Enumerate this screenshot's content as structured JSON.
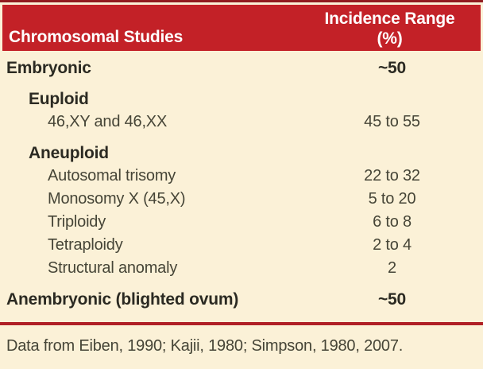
{
  "colors": {
    "header_red": "#c32127",
    "dark_red_top_rule": "#921b1f",
    "separator_rule_red": "#b02025",
    "background_cream": "#fbf1d7",
    "header_text": "#ffffff",
    "bold_text": "#2b2a22",
    "regular_text": "#464537"
  },
  "table": {
    "header": {
      "col1": "Chromosomal Studies",
      "col2_line1": "Incidence Range",
      "col2_line2": "(%)"
    },
    "rows": [
      {
        "label": "Embryonic",
        "value": "~50",
        "level": 0,
        "bold": true
      },
      {
        "label": "Euploid",
        "value": "",
        "level": 1,
        "bold": true
      },
      {
        "label": "46,XY and 46,XX",
        "value": "45 to 55",
        "level": 2,
        "bold": false
      },
      {
        "label": "Aneuploid",
        "value": "",
        "level": 1,
        "bold": true
      },
      {
        "label": "Autosomal trisomy",
        "value": "22 to 32",
        "level": 2,
        "bold": false
      },
      {
        "label": "Monosomy X (45,X)",
        "value": "5 to 20",
        "level": 2,
        "bold": false
      },
      {
        "label": "Triploidy",
        "value": "6 to 8",
        "level": 2,
        "bold": false
      },
      {
        "label": "Tetraploidy",
        "value": "2 to 4",
        "level": 2,
        "bold": false
      },
      {
        "label": "Structural anomaly",
        "value": "2",
        "level": 2,
        "bold": false
      },
      {
        "label": "Anembryonic (blighted ovum)",
        "value": "~50",
        "level": 0,
        "bold": true
      }
    ],
    "footnote": "Data from Eiben, 1990; Kajii, 1980; Simpson, 1980, 2007."
  },
  "chart_data": {
    "type": "table",
    "title": "Chromosomal Studies — Incidence Range (%)",
    "columns": [
      "Chromosomal Studies",
      "Incidence Range (%)"
    ],
    "rows": [
      [
        "Embryonic",
        "~50"
      ],
      [
        "Euploid",
        ""
      ],
      [
        "46,XY and 46,XX",
        "45 to 55"
      ],
      [
        "Aneuploid",
        ""
      ],
      [
        "Autosomal trisomy",
        "22 to 32"
      ],
      [
        "Monosomy X (45,X)",
        "5 to 20"
      ],
      [
        "Triploidy",
        "6 to 8"
      ],
      [
        "Tetraploidy",
        "2 to 4"
      ],
      [
        "Structural anomaly",
        "2"
      ],
      [
        "Anembryonic (blighted ovum)",
        "~50"
      ]
    ],
    "footnote": "Data from Eiben, 1990; Kajii, 1980; Simpson, 1980, 2007."
  }
}
